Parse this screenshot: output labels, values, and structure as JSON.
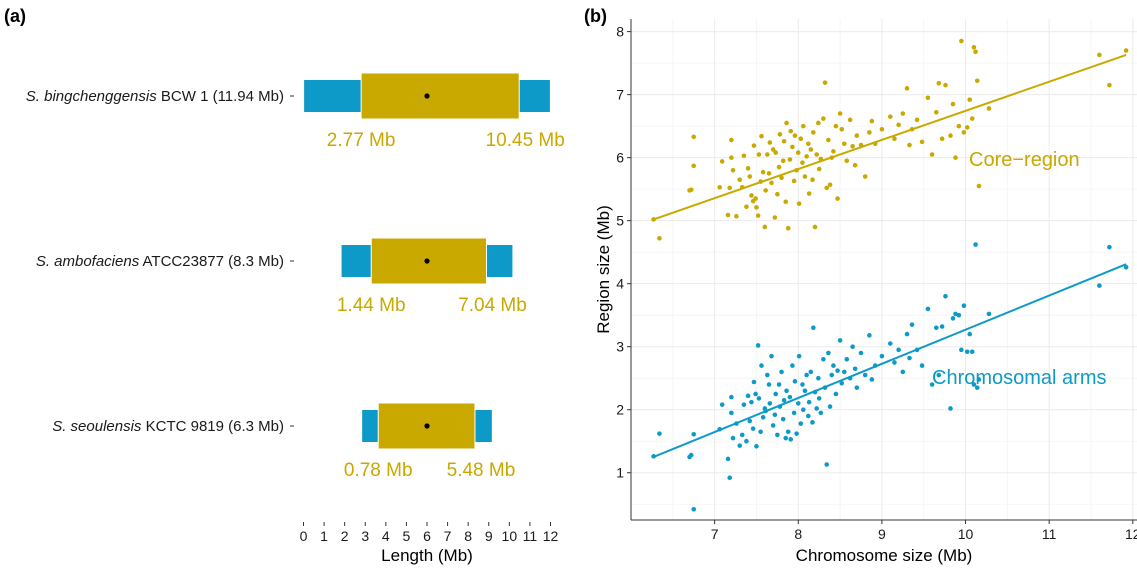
{
  "panels": {
    "a_label": "(a)",
    "b_label": "(b)"
  },
  "colors": {
    "core": "#C9A800",
    "arms": "#0E9AC8",
    "center_dot": "#000000",
    "grid": "#EBEBEB",
    "axis": "#333333"
  },
  "chart_data": [
    {
      "type": "bar",
      "subtype": "horizontal-stacked-range",
      "xlabel": "Length (Mb)",
      "xlim": [
        0,
        12
      ],
      "xticks": [
        0,
        1,
        2,
        3,
        4,
        5,
        6,
        7,
        8,
        9,
        10,
        11,
        12
      ],
      "species": [
        {
          "italic": "S. bingchenggensis",
          "rest": " BCW 1 (11.94 Mb)",
          "size": 11.94,
          "core_start": 2.77,
          "core_end": 10.45,
          "core_start_label": "2.77 Mb",
          "core_end_label": "10.45 Mb"
        },
        {
          "italic": "S. ambofaciens",
          "rest": " ATCC23877 (8.3 Mb)",
          "size": 8.3,
          "core_start": 1.44,
          "core_end": 7.04,
          "core_start_label": "1.44 Mb",
          "core_end_label": "7.04 Mb"
        },
        {
          "italic": "S. seoulensis",
          "rest": " KCTC 9819 (6.3 Mb)",
          "size": 6.3,
          "core_start": 0.78,
          "core_end": 5.48,
          "core_start_label": "0.78 Mb",
          "core_end_label": "5.48 Mb"
        }
      ]
    },
    {
      "type": "scatter",
      "xlabel": "Chromosome size (Mb)",
      "ylabel": "Region size (Mb)",
      "xlim": [
        6.0,
        12.05
      ],
      "ylim": [
        0.25,
        8.2
      ],
      "xticks": [
        7,
        8,
        9,
        10,
        11,
        12
      ],
      "yticks": [
        1,
        2,
        3,
        4,
        5,
        6,
        7,
        8
      ],
      "grid": true,
      "series": [
        {
          "name": "Core−region",
          "color_key": "core",
          "fit": [
            [
              6.27,
              5.02
            ],
            [
              11.92,
              7.63
            ]
          ],
          "points": [
            [
              6.27,
              5.02
            ],
            [
              6.34,
              4.72
            ],
            [
              6.7,
              5.48
            ],
            [
              6.72,
              5.49
            ],
            [
              6.75,
              6.33
            ],
            [
              6.75,
              5.87
            ],
            [
              7.06,
              5.53
            ],
            [
              7.09,
              5.94
            ],
            [
              7.16,
              5.09
            ],
            [
              7.18,
              5.52
            ],
            [
              7.2,
              6.28
            ],
            [
              7.2,
              6.0
            ],
            [
              7.22,
              5.8
            ],
            [
              7.26,
              5.07
            ],
            [
              7.3,
              5.65
            ],
            [
              7.33,
              5.53
            ],
            [
              7.35,
              6.03
            ],
            [
              7.38,
              5.22
            ],
            [
              7.4,
              5.83
            ],
            [
              7.42,
              5.7
            ],
            [
              7.44,
              5.4
            ],
            [
              7.46,
              5.31
            ],
            [
              7.47,
              6.19
            ],
            [
              7.49,
              5.35
            ],
            [
              7.5,
              5.21
            ],
            [
              7.52,
              5.08
            ],
            [
              7.53,
              6.05
            ],
            [
              7.55,
              5.62
            ],
            [
              7.56,
              6.34
            ],
            [
              7.58,
              5.77
            ],
            [
              7.6,
              4.9
            ],
            [
              7.61,
              5.48
            ],
            [
              7.63,
              6.05
            ],
            [
              7.65,
              5.75
            ],
            [
              7.66,
              6.24
            ],
            [
              7.68,
              5.6
            ],
            [
              7.7,
              6.13
            ],
            [
              7.72,
              5.05
            ],
            [
              7.73,
              6.08
            ],
            [
              7.75,
              5.42
            ],
            [
              7.77,
              5.85
            ],
            [
              7.78,
              6.37
            ],
            [
              7.8,
              5.68
            ],
            [
              7.82,
              5.95
            ],
            [
              7.83,
              6.26
            ],
            [
              7.85,
              5.3
            ],
            [
              7.86,
              6.55
            ],
            [
              7.88,
              4.88
            ],
            [
              7.9,
              5.97
            ],
            [
              7.91,
              6.42
            ],
            [
              7.93,
              6.17
            ],
            [
              7.95,
              5.63
            ],
            [
              7.96,
              6.35
            ],
            [
              7.98,
              5.8
            ],
            [
              8.0,
              6.08
            ],
            [
              8.01,
              5.27
            ],
            [
              8.03,
              6.3
            ],
            [
              8.05,
              5.92
            ],
            [
              8.06,
              6.5
            ],
            [
              8.08,
              5.7
            ],
            [
              8.1,
              6.02
            ],
            [
              8.12,
              6.22
            ],
            [
              8.13,
              5.43
            ],
            [
              8.15,
              6.13
            ],
            [
              8.17,
              5.65
            ],
            [
              8.18,
              6.4
            ],
            [
              8.2,
              4.9
            ],
            [
              8.22,
              6.05
            ],
            [
              8.24,
              6.55
            ],
            [
              8.25,
              5.82
            ],
            [
              8.27,
              5.98
            ],
            [
              8.3,
              6.62
            ],
            [
              8.32,
              7.19
            ],
            [
              8.34,
              5.52
            ],
            [
              8.36,
              6.28
            ],
            [
              8.38,
              5.57
            ],
            [
              8.4,
              6.0
            ],
            [
              8.42,
              6.1
            ],
            [
              8.45,
              6.5
            ],
            [
              8.47,
              5.35
            ],
            [
              8.5,
              6.7
            ],
            [
              8.52,
              6.45
            ],
            [
              8.55,
              6.22
            ],
            [
              8.58,
              5.95
            ],
            [
              8.62,
              6.6
            ],
            [
              8.65,
              6.18
            ],
            [
              8.68,
              5.88
            ],
            [
              8.7,
              6.35
            ],
            [
              8.75,
              6.2
            ],
            [
              8.8,
              5.7
            ],
            [
              8.85,
              6.4
            ],
            [
              8.88,
              6.58
            ],
            [
              8.92,
              6.22
            ],
            [
              9.0,
              6.45
            ],
            [
              9.1,
              6.65
            ],
            [
              9.15,
              6.3
            ],
            [
              9.2,
              6.52
            ],
            [
              9.25,
              6.7
            ],
            [
              9.3,
              7.1
            ],
            [
              9.33,
              6.2
            ],
            [
              9.36,
              6.45
            ],
            [
              9.42,
              6.6
            ],
            [
              9.48,
              6.25
            ],
            [
              9.55,
              6.95
            ],
            [
              9.6,
              6.05
            ],
            [
              9.65,
              6.72
            ],
            [
              9.68,
              7.18
            ],
            [
              9.72,
              6.3
            ],
            [
              9.76,
              7.15
            ],
            [
              9.82,
              6.35
            ],
            [
              9.85,
              6.85
            ],
            [
              9.88,
              6.0
            ],
            [
              9.92,
              6.5
            ],
            [
              9.95,
              7.85
            ],
            [
              9.98,
              6.4
            ],
            [
              10.02,
              6.48
            ],
            [
              10.05,
              6.92
            ],
            [
              10.08,
              6.62
            ],
            [
              10.1,
              7.75
            ],
            [
              10.12,
              7.68
            ],
            [
              10.14,
              7.22
            ],
            [
              10.16,
              5.55
            ],
            [
              10.28,
              6.78
            ],
            [
              11.6,
              7.63
            ],
            [
              11.72,
              7.15
            ],
            [
              11.92,
              7.7
            ]
          ]
        },
        {
          "name": "Chromosomal arms",
          "color_key": "arms",
          "fit": [
            [
              6.27,
              1.25
            ],
            [
              11.92,
              4.31
            ]
          ],
          "points": [
            [
              6.27,
              1.26
            ],
            [
              6.34,
              1.62
            ],
            [
              6.7,
              1.25
            ],
            [
              6.72,
              1.28
            ],
            [
              6.75,
              0.42
            ],
            [
              6.75,
              1.61
            ],
            [
              7.06,
              1.69
            ],
            [
              7.09,
              2.08
            ],
            [
              7.16,
              1.22
            ],
            [
              7.18,
              0.92
            ],
            [
              7.2,
              1.95
            ],
            [
              7.2,
              2.2
            ],
            [
              7.22,
              1.55
            ],
            [
              7.26,
              1.78
            ],
            [
              7.3,
              1.43
            ],
            [
              7.33,
              1.6
            ],
            [
              7.35,
              2.08
            ],
            [
              7.38,
              1.5
            ],
            [
              7.4,
              2.22
            ],
            [
              7.42,
              1.82
            ],
            [
              7.44,
              2.12
            ],
            [
              7.46,
              1.7
            ],
            [
              7.47,
              2.44
            ],
            [
              7.49,
              2.25
            ],
            [
              7.5,
              1.42
            ],
            [
              7.52,
              3.02
            ],
            [
              7.53,
              2.18
            ],
            [
              7.55,
              1.65
            ],
            [
              7.56,
              2.7
            ],
            [
              7.58,
              1.88
            ],
            [
              7.6,
              2.02
            ],
            [
              7.61,
              1.98
            ],
            [
              7.63,
              2.55
            ],
            [
              7.65,
              2.4
            ],
            [
              7.66,
              2.1
            ],
            [
              7.68,
              2.85
            ],
            [
              7.7,
              1.75
            ],
            [
              7.72,
              1.92
            ],
            [
              7.73,
              2.25
            ],
            [
              7.75,
              1.6
            ],
            [
              7.77,
              2.4
            ],
            [
              7.78,
              2.05
            ],
            [
              7.8,
              2.6
            ],
            [
              7.82,
              1.85
            ],
            [
              7.83,
              2.15
            ],
            [
              7.85,
              1.55
            ],
            [
              7.86,
              2.3
            ],
            [
              7.88,
              1.65
            ],
            [
              7.9,
              2.2
            ],
            [
              7.91,
              1.53
            ],
            [
              7.93,
              2.7
            ],
            [
              7.95,
              1.95
            ],
            [
              7.96,
              2.45
            ],
            [
              7.98,
              1.62
            ],
            [
              8.0,
              2.1
            ],
            [
              8.01,
              2.85
            ],
            [
              8.03,
              1.78
            ],
            [
              8.05,
              2.4
            ],
            [
              8.06,
              2.0
            ],
            [
              8.08,
              2.3
            ],
            [
              8.1,
              2.55
            ],
            [
              8.12,
              1.9
            ],
            [
              8.13,
              2.12
            ],
            [
              8.15,
              2.6
            ],
            [
              8.17,
              1.8
            ],
            [
              8.18,
              3.3
            ],
            [
              8.2,
              2.28
            ],
            [
              8.22,
              2.02
            ],
            [
              8.24,
              2.5
            ],
            [
              8.25,
              2.18
            ],
            [
              8.27,
              1.95
            ],
            [
              8.3,
              2.8
            ],
            [
              8.32,
              2.35
            ],
            [
              8.34,
              1.13
            ],
            [
              8.36,
              2.9
            ],
            [
              8.38,
              2.05
            ],
            [
              8.4,
              2.55
            ],
            [
              8.42,
              2.7
            ],
            [
              8.45,
              2.25
            ],
            [
              8.47,
              2.62
            ],
            [
              8.5,
              3.1
            ],
            [
              8.52,
              2.42
            ],
            [
              8.55,
              2.6
            ],
            [
              8.58,
              2.8
            ],
            [
              8.62,
              2.5
            ],
            [
              8.65,
              3.0
            ],
            [
              8.68,
              2.65
            ],
            [
              8.7,
              2.35
            ],
            [
              8.75,
              2.9
            ],
            [
              8.8,
              2.55
            ],
            [
              8.85,
              3.18
            ],
            [
              8.88,
              2.48
            ],
            [
              8.92,
              2.7
            ],
            [
              9.0,
              2.85
            ],
            [
              9.1,
              3.05
            ],
            [
              9.15,
              2.75
            ],
            [
              9.2,
              2.95
            ],
            [
              9.25,
              2.6
            ],
            [
              9.3,
              3.2
            ],
            [
              9.33,
              2.82
            ],
            [
              9.36,
              3.35
            ],
            [
              9.42,
              2.95
            ],
            [
              9.48,
              2.7
            ],
            [
              9.55,
              3.6
            ],
            [
              9.6,
              2.4
            ],
            [
              9.65,
              3.3
            ],
            [
              9.68,
              2.55
            ],
            [
              9.72,
              3.32
            ],
            [
              9.76,
              3.8
            ],
            [
              9.82,
              2.02
            ],
            [
              9.85,
              3.45
            ],
            [
              9.88,
              3.52
            ],
            [
              9.92,
              3.5
            ],
            [
              9.95,
              2.95
            ],
            [
              9.98,
              3.65
            ],
            [
              10.02,
              2.92
            ],
            [
              10.05,
              3.2
            ],
            [
              10.08,
              2.92
            ],
            [
              10.1,
              2.4
            ],
            [
              10.12,
              4.62
            ],
            [
              10.14,
              2.35
            ],
            [
              10.16,
              2.48
            ],
            [
              10.28,
              3.52
            ],
            [
              11.6,
              3.97
            ],
            [
              11.72,
              4.58
            ],
            [
              11.92,
              4.26
            ]
          ]
        }
      ]
    }
  ]
}
